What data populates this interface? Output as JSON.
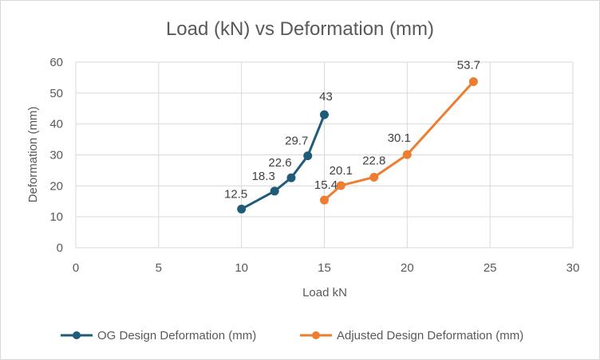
{
  "chart_data": {
    "type": "scatter",
    "title": "Load (kN) vs Deformation (mm)",
    "xlabel": "Load kN",
    "ylabel": "Deformation (mm)",
    "xlim": [
      0,
      30
    ],
    "ylim": [
      0,
      60
    ],
    "x_ticks": [
      "0",
      "5",
      "10",
      "15",
      "20",
      "25",
      "30"
    ],
    "y_ticks": [
      "0",
      "10",
      "20",
      "30",
      "40",
      "50",
      "60"
    ],
    "grid": true,
    "legend_position": "bottom",
    "series": [
      {
        "name": "OG Design Deformation (mm)",
        "color": "#1f5c79",
        "x": [
          10,
          12,
          13,
          14,
          15
        ],
        "y": [
          12.5,
          18.3,
          22.6,
          29.7,
          43
        ],
        "labels": [
          "12.5",
          "18.3",
          "22.6",
          "29.7",
          "43"
        ]
      },
      {
        "name": "Adjusted Design Deformation (mm)",
        "color": "#ed7d31",
        "x": [
          15,
          16,
          18,
          20,
          24
        ],
        "y": [
          15.4,
          20.1,
          22.8,
          30.1,
          53.7
        ],
        "labels": [
          "15.4",
          "20.1",
          "22.8",
          "30.1",
          "53.7"
        ]
      }
    ]
  }
}
